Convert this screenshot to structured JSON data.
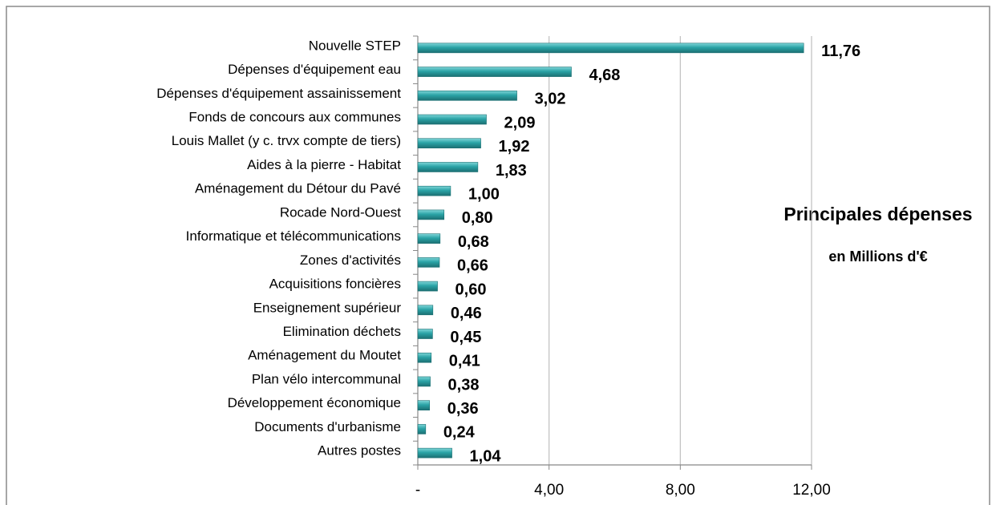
{
  "chart_data": {
    "type": "bar",
    "orientation": "horizontal",
    "title": "Principales dépenses",
    "subtitle": "en Millions d'€",
    "categories": [
      "Nouvelle STEP",
      "Dépenses d'équipement eau",
      "Dépenses d'équipement assainissement",
      "Fonds de concours aux communes",
      "Louis Mallet (y c. trvx compte de tiers)",
      "Aides à la pierre - Habitat",
      "Aménagement du Détour du Pavé",
      "Rocade Nord-Ouest",
      "Informatique et télécommunications",
      "Zones d'activités",
      "Acquisitions foncières",
      "Enseignement supérieur",
      "Elimination déchets",
      "Aménagement du Moutet",
      "Plan vélo intercommunal",
      "Développement économique",
      "Documents d'urbanisme",
      "Autres postes"
    ],
    "values": [
      11.76,
      4.68,
      3.02,
      2.09,
      1.92,
      1.83,
      1.0,
      0.8,
      0.68,
      0.66,
      0.6,
      0.46,
      0.45,
      0.41,
      0.38,
      0.36,
      0.24,
      1.04
    ],
    "value_labels": [
      "11,76",
      "4,68",
      "3,02",
      "2,09",
      "1,92",
      "1,83",
      "1,00",
      "0,80",
      "0,68",
      "0,66",
      "0,60",
      "0,46",
      "0,45",
      "0,41",
      "0,38",
      "0,36",
      "0,24",
      "1,04"
    ],
    "color": "#2aa3a6",
    "xlim": [
      0,
      12
    ],
    "xticks": [
      {
        "value": 0,
        "label": "-"
      },
      {
        "value": 4,
        "label": "4,00"
      },
      {
        "value": 8,
        "label": "8,00"
      },
      {
        "value": 12,
        "label": "12,00"
      }
    ],
    "grid": true
  }
}
